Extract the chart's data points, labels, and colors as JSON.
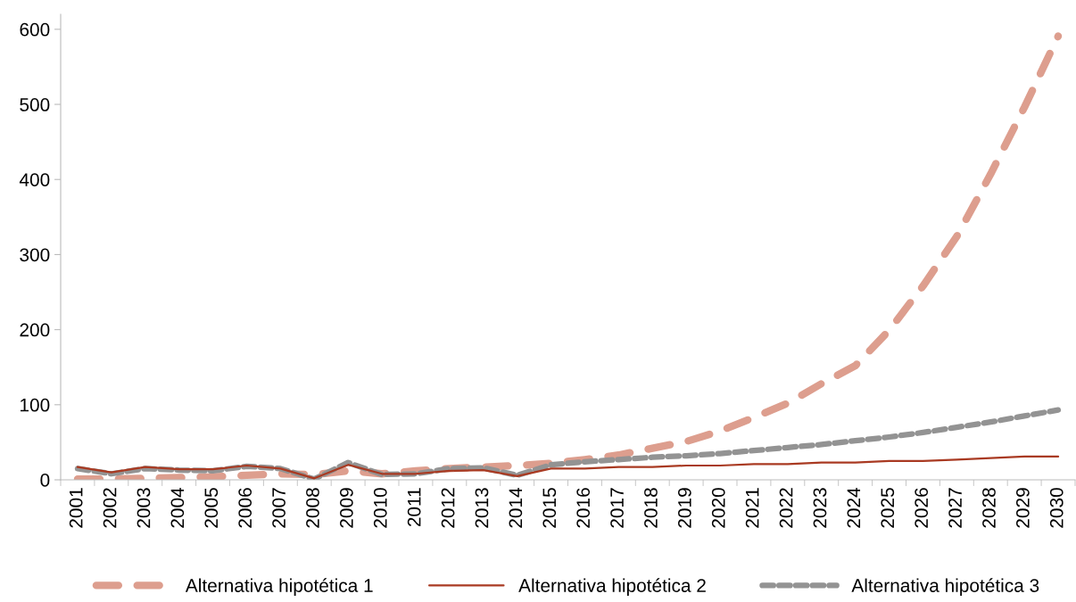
{
  "chart_data": {
    "type": "line",
    "categories": [
      "2001",
      "2002",
      "2003",
      "2004",
      "2005",
      "2006",
      "2007",
      "2008",
      "2009",
      "2010",
      "2011",
      "2012",
      "2013",
      "2014",
      "2015",
      "2016",
      "2017",
      "2018",
      "2019",
      "2020",
      "2021",
      "2022",
      "2023",
      "2024",
      "2025",
      "2026",
      "2027",
      "2028",
      "2029",
      "2030"
    ],
    "series": [
      {
        "name": "Alternativa hipotética 1",
        "color": "#dd9e8e",
        "line_style": "dashed",
        "values": [
          1,
          1,
          2,
          3,
          4,
          6,
          8,
          7,
          12,
          8,
          12,
          15,
          17,
          19,
          22,
          27,
          33,
          42,
          51,
          65,
          83,
          102,
          128,
          152,
          199,
          258,
          324,
          407,
          496,
          591
        ]
      },
      {
        "name": "Alternativa hipotética 2",
        "color": "#a93a22",
        "line_style": "solid",
        "values": [
          17,
          10,
          17,
          14,
          14,
          19,
          15,
          2,
          20,
          8,
          8,
          12,
          13,
          5,
          15,
          15,
          17,
          17,
          19,
          19,
          21,
          21,
          23,
          23,
          25,
          25,
          27,
          29,
          31,
          31
        ]
      },
      {
        "name": "Alternativa hipotética 3",
        "color": "#939393",
        "line_style": "dotted",
        "values": [
          15,
          8,
          15,
          13,
          12,
          18,
          15,
          1,
          23,
          7,
          8,
          15,
          16,
          6,
          20,
          24,
          27,
          30,
          32,
          35,
          39,
          43,
          47,
          52,
          57,
          63,
          70,
          77,
          85,
          93
        ]
      }
    ],
    "ylim": [
      0,
      620
    ],
    "yticks": [
      0,
      100,
      200,
      300,
      400,
      500,
      600
    ],
    "grid": false,
    "legend": "bottom",
    "marker": "none"
  }
}
